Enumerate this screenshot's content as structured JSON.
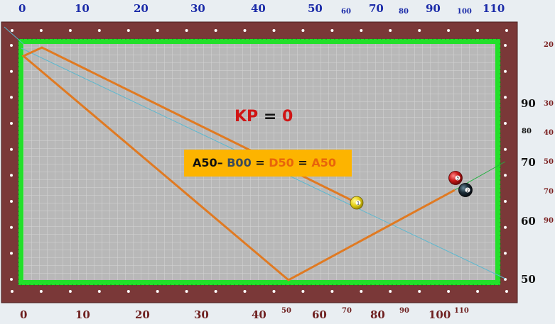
{
  "scales": {
    "top": [
      {
        "t": "0"
      },
      {
        "t": "10"
      },
      {
        "t": "20"
      },
      {
        "t": "30"
      },
      {
        "t": "40"
      },
      {
        "t": "50"
      },
      {
        "t": "60",
        "small": true
      },
      {
        "t": "70"
      },
      {
        "t": "80",
        "small": true
      },
      {
        "t": "90"
      },
      {
        "t": "100",
        "small": true
      },
      {
        "t": "110"
      }
    ],
    "bottom": [
      {
        "t": "0"
      },
      {
        "t": "10"
      },
      {
        "t": "20"
      },
      {
        "t": "30"
      },
      {
        "t": "40"
      },
      {
        "t": "50",
        "small": true
      },
      {
        "t": "60"
      },
      {
        "t": "70",
        "small": true
      },
      {
        "t": "80"
      },
      {
        "t": "90",
        "small": true
      },
      {
        "t": "100"
      },
      {
        "t": "110",
        "small": true
      }
    ],
    "right_inner": [
      {
        "t": "90"
      },
      {
        "t": "80",
        "small": true
      },
      {
        "t": "70"
      },
      {
        "t": "60"
      },
      {
        "t": "50"
      }
    ],
    "right_outer": [
      {
        "t": "20"
      },
      {
        "t": "30"
      },
      {
        "t": "40"
      },
      {
        "t": "50"
      },
      {
        "t": "70"
      },
      {
        "t": "90"
      }
    ]
  },
  "kp": {
    "label": "KP",
    "equals": "=",
    "value": "0"
  },
  "formula": {
    "a": "A50",
    "dash": "–",
    "b": "B00",
    "eq1": "=",
    "d": "D50",
    "eq2": "=",
    "a2": "A50"
  },
  "balls": [
    {
      "name": "cue-ball-yellow",
      "number": "1",
      "color": "#e8d81e"
    },
    {
      "name": "object-ball-red",
      "number": "3",
      "color": "#c41818"
    },
    {
      "name": "object-ball-black",
      "number": "2",
      "color": "#1b2b36"
    }
  ],
  "colors": {
    "rail": "#7a3838",
    "cushion": "#22e02a",
    "cloth": "#b8b8b8",
    "path": "#e07a22",
    "guide": "#5ab8d0",
    "guide2": "#22b040"
  }
}
